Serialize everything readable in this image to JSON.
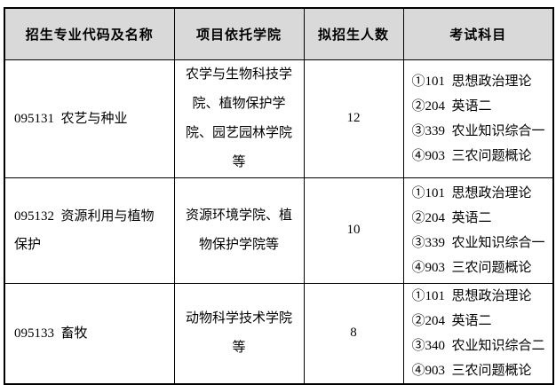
{
  "page": {
    "background": "#ffffff",
    "border_color": "#000000",
    "header_background": "#d9d9d9",
    "text_color": "#000000"
  },
  "table": {
    "columns": [
      {
        "label": "招生专业代码及名称"
      },
      {
        "label": "项目依托学院"
      },
      {
        "label": "拟招生人数"
      },
      {
        "label": "考试科目"
      }
    ],
    "rows": [
      {
        "code_name": "095131  农艺与种业",
        "college": "农学与生物科技学院、植物保护学院、园艺园林学院等",
        "planned_enrollment": "12",
        "exam_subjects": [
          "①101  思想政治理论",
          "②204  英语二",
          "③339  农业知识综合一",
          "④903  三农问题概论"
        ]
      },
      {
        "code_name": "095132  资源利用与植物保护",
        "college": "资源环境学院、植物保护学院等",
        "planned_enrollment": "10",
        "exam_subjects": [
          "①101  思想政治理论",
          "②204  英语二",
          "③339  农业知识综合一",
          "④903  三农问题概论"
        ]
      },
      {
        "code_name": "095133  畜牧",
        "college": "动物科学技术学院等",
        "planned_enrollment": "8",
        "exam_subjects": [
          "①101  思想政治理论",
          "②204  英语二",
          "③340  农业知识综合二",
          "④903  三农问题概论"
        ]
      }
    ]
  }
}
